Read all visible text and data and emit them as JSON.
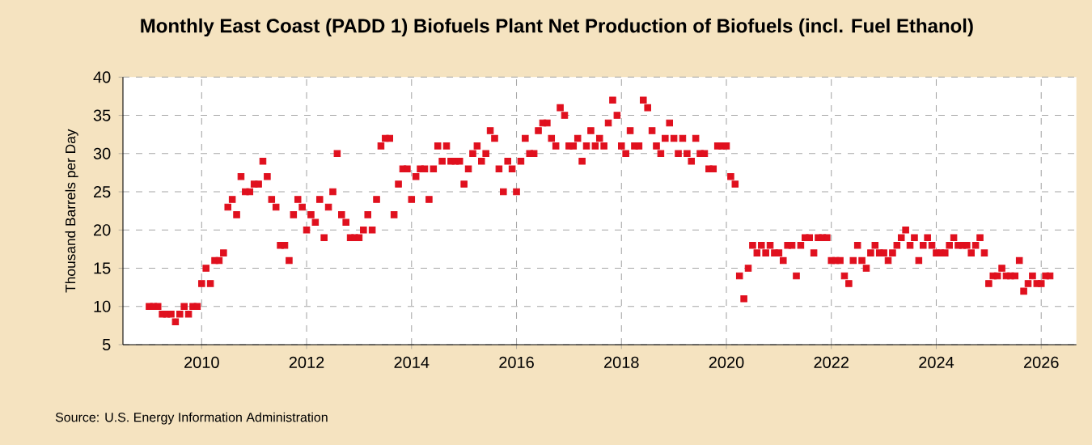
{
  "chart_data": {
    "type": "scatter",
    "title": "Monthly East Coast (PADD 1) Biofuels Plant Net Production of Biofuels (incl. Fuel Ethanol)",
    "ylabel": "Thousand Barrels per Day",
    "annotations": [
      "Source: U.S. Energy Information Administration"
    ],
    "x": [
      "2009-01",
      "2009-02",
      "2009-03",
      "2009-04",
      "2009-05",
      "2009-06",
      "2009-07",
      "2009-08",
      "2009-09",
      "2009-10",
      "2009-11",
      "2009-12",
      "2010-01",
      "2010-02",
      "2010-03",
      "2010-04",
      "2010-05",
      "2010-06",
      "2010-07",
      "2010-08",
      "2010-09",
      "2010-10",
      "2010-11",
      "2010-12",
      "2011-01",
      "2011-02",
      "2011-03",
      "2011-04",
      "2011-05",
      "2011-06",
      "2011-07",
      "2011-08",
      "2011-09",
      "2011-10",
      "2011-11",
      "2011-12",
      "2012-01",
      "2012-02",
      "2012-03",
      "2012-04",
      "2012-05",
      "2012-06",
      "2012-07",
      "2012-08",
      "2012-09",
      "2012-10",
      "2012-11",
      "2012-12",
      "2013-01",
      "2013-02",
      "2013-03",
      "2013-04",
      "2013-05",
      "2013-06",
      "2013-07",
      "2013-08",
      "2013-09",
      "2013-10",
      "2013-11",
      "2013-12",
      "2014-01",
      "2014-02",
      "2014-03",
      "2014-04",
      "2014-05",
      "2014-06",
      "2014-07",
      "2014-08",
      "2014-09",
      "2014-10",
      "2014-11",
      "2014-12",
      "2015-01",
      "2015-02",
      "2015-03",
      "2015-04",
      "2015-05",
      "2015-06",
      "2015-07",
      "2015-08",
      "2015-09",
      "2015-10",
      "2015-11",
      "2015-12",
      "2016-01",
      "2016-02",
      "2016-03",
      "2016-04",
      "2016-05",
      "2016-06",
      "2016-07",
      "2016-08",
      "2016-09",
      "2016-10",
      "2016-11",
      "2016-12",
      "2017-01",
      "2017-02",
      "2017-03",
      "2017-04",
      "2017-05",
      "2017-06",
      "2017-07",
      "2017-08",
      "2017-09",
      "2017-10",
      "2017-11",
      "2017-12",
      "2018-01",
      "2018-02",
      "2018-03",
      "2018-04",
      "2018-05",
      "2018-06",
      "2018-07",
      "2018-08",
      "2018-09",
      "2018-10",
      "2018-11",
      "2018-12",
      "2019-01",
      "2019-02",
      "2019-03",
      "2019-04",
      "2019-05",
      "2019-06",
      "2019-07",
      "2019-08",
      "2019-09",
      "2019-10",
      "2019-11",
      "2019-12",
      "2020-01",
      "2020-02",
      "2020-03",
      "2020-04",
      "2020-05",
      "2020-06",
      "2020-07",
      "2020-08",
      "2020-09",
      "2020-10",
      "2020-11",
      "2020-12",
      "2021-01",
      "2021-02",
      "2021-03",
      "2021-04",
      "2021-05",
      "2021-06",
      "2021-07",
      "2021-08",
      "2021-09",
      "2021-10",
      "2021-11",
      "2021-12",
      "2022-01",
      "2022-02",
      "2022-03",
      "2022-04",
      "2022-05",
      "2022-06",
      "2022-07",
      "2022-08",
      "2022-09",
      "2022-10",
      "2022-11",
      "2022-12",
      "2023-01",
      "2023-02",
      "2023-03",
      "2023-04",
      "2023-05",
      "2023-06",
      "2023-07",
      "2023-08",
      "2023-09",
      "2023-10",
      "2023-11",
      "2023-12",
      "2024-01",
      "2024-02",
      "2024-03",
      "2024-04",
      "2024-05",
      "2024-06",
      "2024-07",
      "2024-08",
      "2024-09",
      "2024-10",
      "2024-11",
      "2024-12",
      "2025-01",
      "2025-02",
      "2025-03",
      "2025-04",
      "2025-05",
      "2025-06",
      "2025-07",
      "2025-08",
      "2025-09",
      "2025-10",
      "2025-11",
      "2025-12",
      "2026-01",
      "2026-02",
      "2026-03"
    ],
    "values": [
      10,
      10,
      10,
      9,
      9,
      9,
      8,
      9,
      10,
      9,
      10,
      10,
      13,
      15,
      13,
      16,
      16,
      17,
      23,
      24,
      22,
      27,
      25,
      25,
      26,
      26,
      29,
      27,
      24,
      23,
      18,
      18,
      16,
      22,
      24,
      23,
      20,
      22,
      21,
      24,
      19,
      23,
      25,
      30,
      22,
      21,
      19,
      19,
      19,
      20,
      22,
      20,
      24,
      31,
      32,
      32,
      22,
      26,
      28,
      28,
      24,
      27,
      28,
      28,
      24,
      28,
      31,
      29,
      31,
      29,
      29,
      29,
      26,
      28,
      30,
      31,
      29,
      30,
      33,
      32,
      28,
      25,
      29,
      28,
      25,
      29,
      32,
      30,
      30,
      33,
      34,
      34,
      32,
      31,
      36,
      35,
      31,
      31,
      32,
      29,
      31,
      33,
      31,
      32,
      31,
      34,
      37,
      35,
      31,
      30,
      33,
      31,
      31,
      37,
      36,
      33,
      31,
      30,
      32,
      34,
      32,
      30,
      32,
      30,
      29,
      32,
      30,
      30,
      28,
      28,
      31,
      31,
      31,
      27,
      26,
      14,
      11,
      15,
      18,
      17,
      18,
      17,
      18,
      17,
      17,
      16,
      18,
      18,
      14,
      18,
      19,
      19,
      17,
      19,
      19,
      19,
      16,
      16,
      16,
      14,
      13,
      16,
      18,
      16,
      15,
      17,
      18,
      17,
      17,
      16,
      17,
      18,
      19,
      20,
      18,
      19,
      16,
      18,
      19,
      18,
      17,
      17,
      17,
      18,
      19,
      18,
      18,
      18,
      17,
      18,
      19,
      17,
      13,
      14,
      14,
      15,
      14,
      14,
      14,
      16,
      12,
      13,
      14,
      13,
      13,
      14,
      14
    ],
    "color": "#e0101e",
    "marker": "square",
    "xlim": [
      "2008-07",
      "2026-09"
    ],
    "xticks": [
      "2010",
      "2012",
      "2014",
      "2016",
      "2018",
      "2020",
      "2022",
      "2024",
      "2026"
    ],
    "ylim": [
      5,
      40
    ],
    "yticks": [
      5,
      10,
      15,
      20,
      25,
      30,
      35,
      40
    ],
    "grid": true
  }
}
